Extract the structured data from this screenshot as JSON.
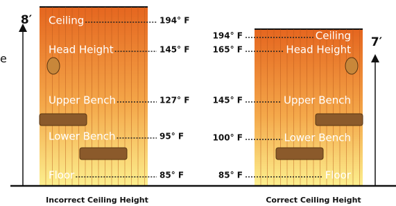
{
  "left_fragment": "e",
  "incorrect": {
    "height": "8′",
    "caption": "Incorrect Ceiling Height",
    "rows": [
      {
        "label": "Ceiling",
        "temp": "194° F"
      },
      {
        "label": "Head Height",
        "temp": "145° F"
      },
      {
        "label": "Upper Bench",
        "temp": "127° F"
      },
      {
        "label": "Lower Bench",
        "temp": "95° F"
      },
      {
        "label": "Floor",
        "temp": "85° F"
      }
    ]
  },
  "correct": {
    "height": "7′",
    "caption": "Correct Ceiling Height",
    "rows": [
      {
        "label": "Ceiling",
        "temp": "194° F"
      },
      {
        "label": "Head Height",
        "temp": "165° F"
      },
      {
        "label": "Upper Bench",
        "temp": "145° F"
      },
      {
        "label": "Lower Bench",
        "temp": "100° F"
      },
      {
        "label": "Floor",
        "temp": "85° F"
      }
    ]
  }
}
